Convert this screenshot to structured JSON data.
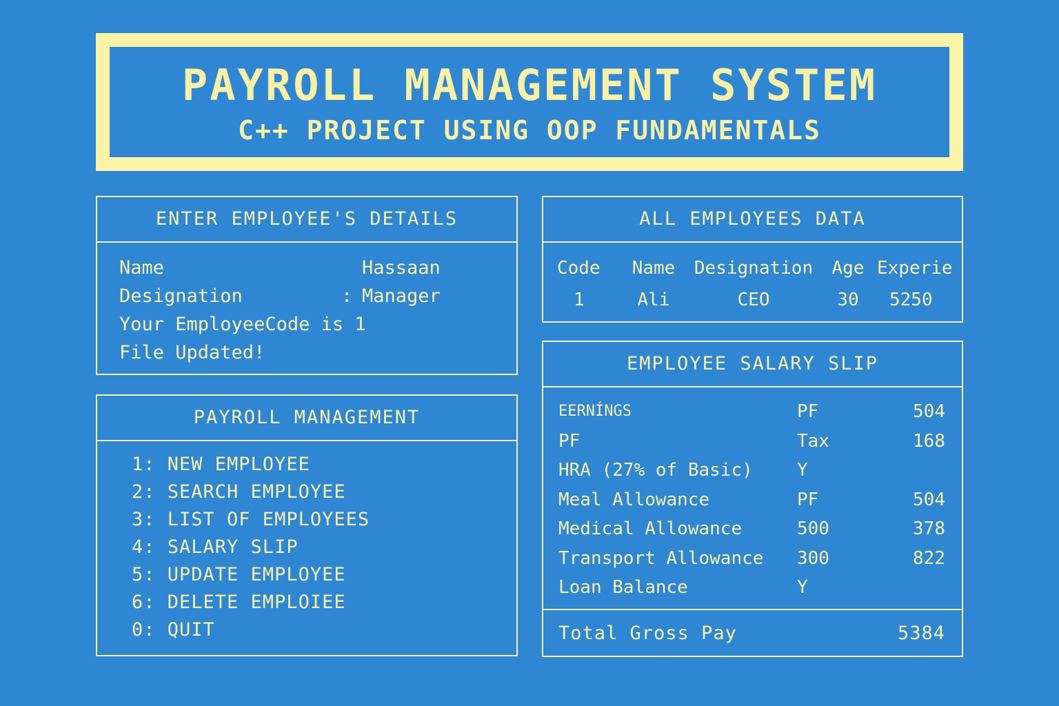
{
  "header": {
    "title": "PAYROLL MANAGEMENT SYSTEM",
    "subtitle": "C++ PROJECT USING OOP FUNDAMENTALS"
  },
  "details_panel": {
    "title": "ENTER EMPLOYEE'S DETAILS",
    "rows": [
      {
        "label": "Name",
        "sep": "",
        "value": "Hassaan"
      },
      {
        "label": "Designation",
        "sep": ":",
        "value": "Manager"
      }
    ],
    "code_message": "Your EmployeeCode is 1",
    "status_message": "File Updated!"
  },
  "menu_panel": {
    "title": "PAYROLL MANAGEMENT",
    "items": [
      "1: NEW EMPLOYEE",
      "2: SEARCH EMPLOYEE",
      "3: LIST OF EMPLOYEES",
      "4: SALARY SLIP",
      "5: UPDATE EMPLOYEE",
      "6: DELETE EMPLOIEE",
      "0: QUIT"
    ]
  },
  "employees_panel": {
    "title": "ALL EMPLOYEES DATA",
    "columns": [
      "Code",
      "Name",
      "Designation",
      "Age",
      "Experie"
    ],
    "rows": [
      [
        "1",
        "Ali",
        "CEO",
        "30",
        "5250"
      ]
    ]
  },
  "salary_panel": {
    "title": "EMPLOYEE SALARY SLIP",
    "rows": [
      [
        "EERNÍNGS",
        "PF",
        "504"
      ],
      [
        "PF",
        "Tax",
        "168"
      ],
      [
        "HRA (27% of Basic)",
        "Y",
        ""
      ],
      [
        "Meal Allowance",
        "PF",
        "504"
      ],
      [
        "Medical Allowance",
        "500",
        "378"
      ],
      [
        "Transport Allowance",
        "300",
        "822"
      ],
      [
        "Loan Balance",
        "Y",
        ""
      ]
    ],
    "total_label": "Total Gross Pay",
    "total_value": "5384"
  },
  "colors": {
    "background": "#2f86d3",
    "accent": "#f7f0a6"
  }
}
